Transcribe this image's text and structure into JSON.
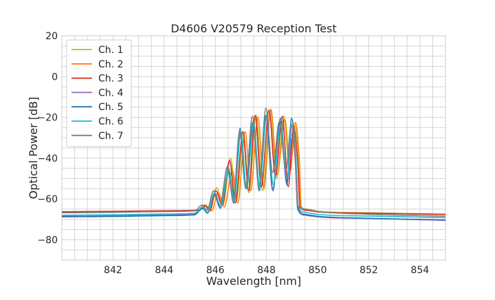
{
  "chart_data": {
    "type": "line",
    "title": "D4606 V20579 Reception Test",
    "xlabel": "Wavelength [nm]",
    "ylabel": "Optical Power [dB]",
    "xlim": [
      840,
      855
    ],
    "ylim": [
      -90,
      20
    ],
    "xticks": [
      842,
      844,
      846,
      848,
      850,
      852,
      854
    ],
    "yticks": [
      -80,
      -60,
      -40,
      -20,
      0,
      20
    ],
    "grid": true,
    "legend_position": "top-left",
    "series": [
      {
        "name": "Ch. 1",
        "color": "#bcbd22",
        "points": [
          [
            840,
            -66.6
          ],
          [
            842,
            -66.4
          ],
          [
            844,
            -66.0
          ],
          [
            845.3,
            -65.6
          ],
          [
            845.6,
            -62.8
          ],
          [
            845.8,
            -65.5
          ],
          [
            846.05,
            -54.5
          ],
          [
            846.3,
            -63
          ],
          [
            846.6,
            -40
          ],
          [
            846.82,
            -61
          ],
          [
            847.1,
            -28
          ],
          [
            847.32,
            -57
          ],
          [
            847.6,
            -19
          ],
          [
            847.85,
            -56
          ],
          [
            848.15,
            -16.5
          ],
          [
            848.4,
            -50
          ],
          [
            848.68,
            -19.5
          ],
          [
            848.9,
            -45
          ],
          [
            849.1,
            -24
          ],
          [
            849.25,
            -40
          ],
          [
            849.33,
            -63.5
          ],
          [
            849.6,
            -65
          ],
          [
            850,
            -66
          ],
          [
            852,
            -66.8
          ],
          [
            855,
            -67.5
          ]
        ]
      },
      {
        "name": "Ch. 2",
        "color": "#ff7f0e",
        "points": [
          [
            840,
            -66.8
          ],
          [
            842,
            -66.5
          ],
          [
            844,
            -66.1
          ],
          [
            845.3,
            -65.8
          ],
          [
            845.65,
            -63.5
          ],
          [
            845.85,
            -66
          ],
          [
            846.12,
            -57
          ],
          [
            846.35,
            -64
          ],
          [
            846.67,
            -46
          ],
          [
            846.88,
            -62
          ],
          [
            847.17,
            -27
          ],
          [
            847.38,
            -56
          ],
          [
            847.67,
            -20
          ],
          [
            847.9,
            -55
          ],
          [
            848.17,
            -16
          ],
          [
            848.42,
            -48
          ],
          [
            848.72,
            -21
          ],
          [
            848.93,
            -46
          ],
          [
            849.13,
            -22.5
          ],
          [
            849.28,
            -40
          ],
          [
            849.36,
            -64
          ],
          [
            849.6,
            -65.5
          ],
          [
            850,
            -66.3
          ],
          [
            852,
            -67
          ],
          [
            855,
            -67.6
          ]
        ]
      },
      {
        "name": "Ch. 3",
        "color": "#d62728",
        "points": [
          [
            840,
            -66.3
          ],
          [
            842,
            -66.1
          ],
          [
            844,
            -65.8
          ],
          [
            845.3,
            -65.5
          ],
          [
            845.6,
            -63.3
          ],
          [
            845.78,
            -65.8
          ],
          [
            846.02,
            -56
          ],
          [
            846.27,
            -63
          ],
          [
            846.56,
            -41
          ],
          [
            846.78,
            -62
          ],
          [
            847.08,
            -27
          ],
          [
            847.3,
            -56
          ],
          [
            847.56,
            -19
          ],
          [
            847.8,
            -54
          ],
          [
            848.1,
            -16.5
          ],
          [
            848.35,
            -49
          ],
          [
            848.62,
            -19.5
          ],
          [
            848.85,
            -54
          ],
          [
            849.06,
            -25
          ],
          [
            849.22,
            -42
          ],
          [
            849.31,
            -64
          ],
          [
            849.6,
            -65.6
          ],
          [
            850,
            -66.4
          ],
          [
            852,
            -67
          ],
          [
            855,
            -67.6
          ]
        ]
      },
      {
        "name": "Ch. 4",
        "color": "#9467bd",
        "points": [
          [
            840,
            -68.5
          ],
          [
            842,
            -68.3
          ],
          [
            844,
            -67.9
          ],
          [
            845.2,
            -67.5
          ],
          [
            845.5,
            -64.8
          ],
          [
            845.7,
            -67
          ],
          [
            845.95,
            -58
          ],
          [
            846.2,
            -64.5
          ],
          [
            846.5,
            -47
          ],
          [
            846.72,
            -62
          ],
          [
            846.97,
            -27
          ],
          [
            847.2,
            -55
          ],
          [
            847.48,
            -23
          ],
          [
            847.72,
            -56
          ],
          [
            847.98,
            -20
          ],
          [
            848.25,
            -55
          ],
          [
            848.52,
            -22
          ],
          [
            848.8,
            -52
          ],
          [
            849.0,
            -30
          ],
          [
            849.12,
            -40
          ],
          [
            849.22,
            -65
          ],
          [
            849.5,
            -68
          ],
          [
            850,
            -68.8
          ],
          [
            852,
            -69.6
          ],
          [
            855,
            -70.5
          ]
        ]
      },
      {
        "name": "Ch. 5",
        "color": "#1f77b4",
        "points": [
          [
            840,
            -68.8
          ],
          [
            842,
            -68.6
          ],
          [
            844,
            -68.2
          ],
          [
            845.2,
            -67.8
          ],
          [
            845.5,
            -64.5
          ],
          [
            845.7,
            -67
          ],
          [
            845.95,
            -57.5
          ],
          [
            846.2,
            -64.5
          ],
          [
            846.5,
            -47
          ],
          [
            846.72,
            -62
          ],
          [
            846.97,
            -25.5
          ],
          [
            847.2,
            -55
          ],
          [
            847.48,
            -22
          ],
          [
            847.72,
            -56
          ],
          [
            847.98,
            -19
          ],
          [
            848.25,
            -56
          ],
          [
            848.55,
            -20.5
          ],
          [
            848.8,
            -53
          ],
          [
            848.98,
            -20.5
          ],
          [
            849.12,
            -35
          ],
          [
            849.22,
            -64
          ],
          [
            849.5,
            -67.5
          ],
          [
            850,
            -68.5
          ],
          [
            852,
            -69.5
          ],
          [
            855,
            -70.3
          ]
        ]
      },
      {
        "name": "Ch. 6",
        "color": "#17becf",
        "points": [
          [
            840,
            -68.0
          ],
          [
            842,
            -67.8
          ],
          [
            844,
            -67.4
          ],
          [
            845.2,
            -67
          ],
          [
            845.5,
            -64
          ],
          [
            845.7,
            -66.5
          ],
          [
            845.97,
            -57
          ],
          [
            846.22,
            -64
          ],
          [
            846.52,
            -45
          ],
          [
            846.74,
            -61
          ],
          [
            847.0,
            -27
          ],
          [
            847.22,
            -55
          ],
          [
            847.5,
            -23
          ],
          [
            847.74,
            -55
          ],
          [
            848.0,
            -20
          ],
          [
            848.27,
            -53
          ],
          [
            848.55,
            -23
          ],
          [
            848.8,
            -50
          ],
          [
            849.0,
            -24
          ],
          [
            849.14,
            -38
          ],
          [
            849.24,
            -63.5
          ],
          [
            849.5,
            -66.5
          ],
          [
            850,
            -67.6
          ],
          [
            852,
            -68.4
          ],
          [
            855,
            -69.2
          ]
        ]
      },
      {
        "name": "Ch. 7",
        "color": "#7f7f7f",
        "points": [
          [
            840,
            -66.8
          ],
          [
            842,
            -66.6
          ],
          [
            844,
            -66.2
          ],
          [
            845.2,
            -65.8
          ],
          [
            845.48,
            -63
          ],
          [
            845.68,
            -65.5
          ],
          [
            845.93,
            -56
          ],
          [
            846.18,
            -63
          ],
          [
            846.48,
            -44
          ],
          [
            846.7,
            -61
          ],
          [
            846.95,
            -27
          ],
          [
            847.18,
            -54
          ],
          [
            847.45,
            -19.5
          ],
          [
            847.7,
            -54
          ],
          [
            847.98,
            -15.5
          ],
          [
            848.24,
            -47
          ],
          [
            848.5,
            -22
          ],
          [
            848.76,
            -46
          ],
          [
            848.97,
            -23.5
          ],
          [
            849.12,
            -37
          ],
          [
            849.22,
            -63
          ],
          [
            849.5,
            -65
          ],
          [
            850,
            -66.2
          ],
          [
            852,
            -67.5
          ],
          [
            855,
            -68.5
          ]
        ]
      }
    ]
  }
}
